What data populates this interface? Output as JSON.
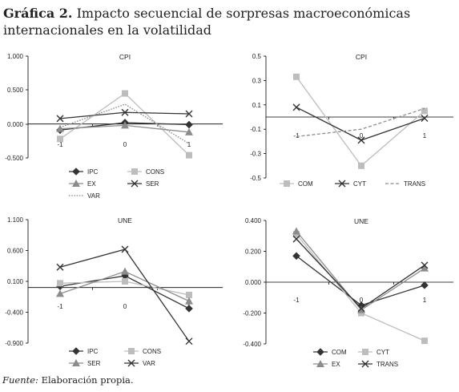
{
  "header": {
    "lead": "Gráfica 2.",
    "text": "Impacto secuencial de sorpresas macroeconómicas internacionales en la volatilidad"
  },
  "footer": {
    "source_label": "Fuente:",
    "source_text": "Elaboración propia."
  },
  "colors": {
    "dark": "#333333",
    "light": "#bdbdbd",
    "mid": "#8c8c8c",
    "axis": "#000000"
  },
  "chart_data": [
    {
      "id": "p1",
      "type": "line",
      "title": "CPI",
      "x": [
        -1,
        0,
        1
      ],
      "x_tick_labels": [
        "-1",
        "0",
        "1"
      ],
      "y_tick_labels": [
        "1.000",
        "0.500",
        "0.000",
        "-0.500"
      ],
      "ylim": [
        -0.5,
        1.0
      ],
      "legend_position": "bottom",
      "series": [
        {
          "name": "IPC",
          "values": [
            -0.09,
            0.02,
            -0.01
          ],
          "color": "dark",
          "marker": "diamond",
          "dash": "solid"
        },
        {
          "name": "CONS",
          "values": [
            -0.22,
            0.45,
            -0.46
          ],
          "color": "light",
          "marker": "square",
          "dash": "solid"
        },
        {
          "name": "EX",
          "values": [
            -0.07,
            -0.02,
            -0.12
          ],
          "color": "mid",
          "marker": "triangle",
          "dash": "solid"
        },
        {
          "name": "SER",
          "values": [
            0.08,
            0.17,
            0.15
          ],
          "color": "dark",
          "marker": "x",
          "dash": "solid"
        },
        {
          "name": "VAR",
          "values": [
            -0.05,
            0.29,
            -0.29
          ],
          "color": "mid",
          "marker": "none",
          "dash": "dotted"
        }
      ]
    },
    {
      "id": "p2",
      "type": "line",
      "title": "CPI",
      "x": [
        -1,
        0,
        1
      ],
      "x_tick_labels": [
        "-1",
        "0",
        "1"
      ],
      "y_tick_labels": [
        "0.5",
        "0.3",
        "0.1",
        "-0.1",
        "-0.3",
        "-0.5"
      ],
      "ylim": [
        -0.5,
        0.5
      ],
      "legend_position": "bottom",
      "series": [
        {
          "name": "COM",
          "values": [
            0.33,
            -0.4,
            0.05
          ],
          "color": "light",
          "marker": "square",
          "dash": "solid"
        },
        {
          "name": "CYT",
          "values": [
            0.08,
            -0.19,
            -0.01
          ],
          "color": "dark",
          "marker": "x",
          "dash": "solid"
        },
        {
          "name": "TRANS",
          "values": [
            -0.16,
            -0.1,
            0.07
          ],
          "color": "mid",
          "marker": "none",
          "dash": "dashed"
        }
      ]
    },
    {
      "id": "p3",
      "type": "line",
      "title": "UNE",
      "x": [
        -1,
        0,
        1
      ],
      "x_tick_labels": [
        "-1",
        "0",
        "1"
      ],
      "y_tick_labels": [
        "1.100",
        "0.600",
        "0.100",
        "-0.400",
        "-0.900"
      ],
      "ylim": [
        -0.9,
        1.1
      ],
      "legend_position": "bottom",
      "series": [
        {
          "name": "IPC",
          "values": [
            0.02,
            0.19,
            -0.34
          ],
          "color": "dark",
          "marker": "diamond",
          "dash": "solid"
        },
        {
          "name": "CONS",
          "values": [
            0.07,
            0.1,
            -0.12
          ],
          "color": "light",
          "marker": "square",
          "dash": "solid"
        },
        {
          "name": "SER",
          "values": [
            -0.1,
            0.26,
            -0.22
          ],
          "color": "mid",
          "marker": "triangle",
          "dash": "solid"
        },
        {
          "name": "VAR",
          "values": [
            0.33,
            0.62,
            -0.87
          ],
          "color": "dark",
          "marker": "x",
          "dash": "solid"
        }
      ]
    },
    {
      "id": "p4",
      "type": "line",
      "title": "UNE",
      "x": [
        -1,
        0,
        1
      ],
      "x_tick_labels": [
        "-1",
        "0",
        "1"
      ],
      "y_tick_labels": [
        "0.400",
        "0.200",
        "0.000",
        "-0.200",
        "-0.400"
      ],
      "ylim": [
        -0.4,
        0.4
      ],
      "legend_position": "bottom",
      "series": [
        {
          "name": "COM",
          "values": [
            0.17,
            -0.15,
            -0.02
          ],
          "color": "dark",
          "marker": "diamond",
          "dash": "solid"
        },
        {
          "name": "CYT",
          "values": [
            0.31,
            -0.2,
            -0.38
          ],
          "color": "light",
          "marker": "square",
          "dash": "solid"
        },
        {
          "name": "EX",
          "values": [
            0.33,
            -0.18,
            0.09
          ],
          "color": "mid",
          "marker": "triangle",
          "dash": "solid"
        },
        {
          "name": "TRANS",
          "values": [
            0.28,
            -0.17,
            0.11
          ],
          "color": "dark",
          "marker": "x",
          "dash": "solid"
        }
      ]
    }
  ]
}
